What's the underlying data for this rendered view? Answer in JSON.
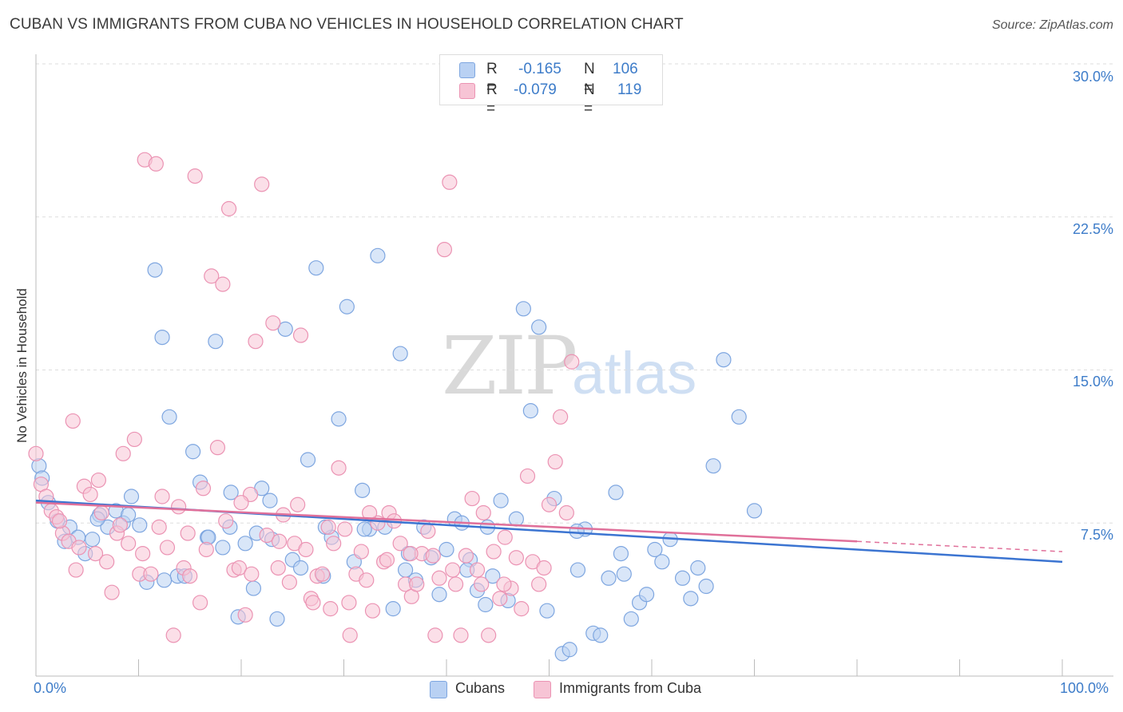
{
  "title": "CUBAN VS IMMIGRANTS FROM CUBA NO VEHICLES IN HOUSEHOLD CORRELATION CHART",
  "source": "Source: ZipAtlas.com",
  "watermark": {
    "zip": "ZIP",
    "atlas": "atlas"
  },
  "colors": {
    "blue": "#3b74d1",
    "blue_fill": "#b9d1f3",
    "blue_stroke": "#7ea6e0",
    "pink": "#e0709a",
    "pink_fill": "#f7c4d5",
    "pink_stroke": "#eb93b3",
    "tick_text": "#3d7cc9",
    "grid": "#dddddd"
  },
  "legend": {
    "rows": [
      {
        "r_label": "R =",
        "r_value": "-0.165",
        "n_label": "N =",
        "n_value": "106"
      },
      {
        "r_label": "R =",
        "r_value": "-0.079",
        "n_label": "N =",
        "n_value": "119"
      }
    ]
  },
  "bottom_legend": [
    "Cubans",
    "Immigrants from Cuba"
  ],
  "chart_data": {
    "type": "scatter",
    "ylabel": "No Vehicles in Household",
    "xlabel": "",
    "xlim": [
      0,
      100
    ],
    "ylim": [
      0,
      30
    ],
    "x_tick_labels": [
      "0.0%",
      "100.0%"
    ],
    "y_tick_labels": [
      "7.5%",
      "15.0%",
      "22.5%",
      "30.0%"
    ],
    "y_tick_values": [
      7.5,
      15.0,
      22.5,
      30.0
    ],
    "grid": "horizontal dashed",
    "legend_position": "top-center",
    "series": [
      {
        "name": "Cubans",
        "r": -0.165,
        "n": 106,
        "trend": {
          "x": [
            0,
            100
          ],
          "y": [
            8.6,
            5.6
          ]
        },
        "points": [
          [
            0.3,
            10.3
          ],
          [
            0.6,
            9.7
          ],
          [
            1.2,
            8.5
          ],
          [
            2.1,
            7.6
          ],
          [
            2.8,
            6.6
          ],
          [
            3.3,
            7.3
          ],
          [
            4.1,
            6.8
          ],
          [
            4.8,
            6.0
          ],
          [
            5.5,
            6.7
          ],
          [
            6.2,
            7.9
          ],
          [
            7.0,
            7.3
          ],
          [
            7.8,
            8.1
          ],
          [
            8.5,
            7.5
          ],
          [
            9.3,
            8.8
          ],
          [
            10.1,
            7.4
          ],
          [
            10.8,
            4.6
          ],
          [
            11.6,
            19.9
          ],
          [
            12.3,
            16.6
          ],
          [
            13.0,
            12.7
          ],
          [
            13.8,
            4.9
          ],
          [
            14.5,
            4.9
          ],
          [
            15.3,
            11.0
          ],
          [
            16.0,
            9.5
          ],
          [
            16.7,
            6.8
          ],
          [
            17.5,
            16.4
          ],
          [
            18.2,
            6.3
          ],
          [
            18.9,
            7.3
          ],
          [
            19.7,
            2.9
          ],
          [
            20.4,
            6.5
          ],
          [
            21.2,
            4.3
          ],
          [
            22.0,
            9.2
          ],
          [
            22.8,
            8.6
          ],
          [
            23.5,
            2.8
          ],
          [
            24.3,
            17.0
          ],
          [
            25.0,
            5.7
          ],
          [
            25.8,
            5.3
          ],
          [
            26.5,
            10.6
          ],
          [
            27.3,
            20.0
          ],
          [
            28.0,
            4.9
          ],
          [
            28.8,
            6.8
          ],
          [
            29.5,
            12.6
          ],
          [
            30.3,
            18.1
          ],
          [
            31.0,
            5.6
          ],
          [
            31.8,
            9.1
          ],
          [
            32.5,
            7.2
          ],
          [
            33.3,
            20.6
          ],
          [
            34.0,
            7.3
          ],
          [
            34.8,
            3.3
          ],
          [
            35.5,
            15.8
          ],
          [
            36.3,
            6.0
          ],
          [
            37.0,
            4.7
          ],
          [
            37.8,
            7.3
          ],
          [
            38.5,
            5.8
          ],
          [
            39.3,
            4.0
          ],
          [
            40.0,
            6.2
          ],
          [
            40.8,
            7.7
          ],
          [
            41.5,
            7.5
          ],
          [
            42.3,
            5.7
          ],
          [
            43.0,
            4.2
          ],
          [
            43.8,
            3.5
          ],
          [
            44.5,
            4.9
          ],
          [
            45.3,
            8.6
          ],
          [
            46.0,
            3.7
          ],
          [
            46.8,
            7.7
          ],
          [
            47.5,
            18.0
          ],
          [
            48.2,
            13.0
          ],
          [
            49.0,
            17.1
          ],
          [
            49.8,
            3.2
          ],
          [
            50.5,
            8.7
          ],
          [
            51.3,
            1.1
          ],
          [
            52.0,
            1.3
          ],
          [
            52.8,
            5.2
          ],
          [
            53.5,
            7.2
          ],
          [
            54.3,
            2.1
          ],
          [
            55.0,
            2.0
          ],
          [
            55.8,
            4.8
          ],
          [
            56.5,
            9.0
          ],
          [
            57.3,
            5.0
          ],
          [
            58.0,
            2.8
          ],
          [
            58.8,
            3.6
          ],
          [
            59.5,
            4.0
          ],
          [
            60.3,
            6.2
          ],
          [
            61.0,
            5.6
          ],
          [
            61.8,
            6.7
          ],
          [
            63.0,
            4.8
          ],
          [
            63.8,
            3.8
          ],
          [
            64.5,
            5.3
          ],
          [
            65.3,
            4.4
          ],
          [
            66.0,
            10.3
          ],
          [
            67.0,
            15.5
          ],
          [
            68.5,
            12.7
          ],
          [
            70.0,
            8.1
          ],
          [
            12.5,
            4.7
          ],
          [
            16.8,
            6.8
          ],
          [
            19.0,
            9.0
          ],
          [
            21.5,
            7.0
          ],
          [
            23.0,
            6.7
          ],
          [
            28.2,
            7.3
          ],
          [
            32.0,
            7.2
          ],
          [
            36.0,
            5.2
          ],
          [
            42.0,
            5.2
          ],
          [
            44.0,
            7.3
          ],
          [
            52.7,
            7.1
          ],
          [
            57.0,
            6.0
          ],
          [
            9.0,
            7.9
          ],
          [
            6.0,
            7.7
          ]
        ]
      },
      {
        "name": "Immigrants from Cuba",
        "r": -0.079,
        "n": 119,
        "trend": {
          "x": [
            0,
            80
          ],
          "y": [
            8.5,
            6.6
          ]
        },
        "trend_dashed": {
          "x": [
            80,
            100
          ],
          "y": [
            6.6,
            6.1
          ]
        },
        "points": [
          [
            0.0,
            10.9
          ],
          [
            0.5,
            9.4
          ],
          [
            1.0,
            8.8
          ],
          [
            1.5,
            8.1
          ],
          [
            2.0,
            7.8
          ],
          [
            2.6,
            7.0
          ],
          [
            3.2,
            6.6
          ],
          [
            3.6,
            12.5
          ],
          [
            4.2,
            6.3
          ],
          [
            4.7,
            9.3
          ],
          [
            5.3,
            8.9
          ],
          [
            5.8,
            6.0
          ],
          [
            6.4,
            8.0
          ],
          [
            6.9,
            5.6
          ],
          [
            7.4,
            4.1
          ],
          [
            7.9,
            7.0
          ],
          [
            8.5,
            10.9
          ],
          [
            9.0,
            6.5
          ],
          [
            9.6,
            11.6
          ],
          [
            10.1,
            5.0
          ],
          [
            10.6,
            25.3
          ],
          [
            11.2,
            5.0
          ],
          [
            11.7,
            25.1
          ],
          [
            12.3,
            8.8
          ],
          [
            12.8,
            6.3
          ],
          [
            13.4,
            2.0
          ],
          [
            13.9,
            8.3
          ],
          [
            14.4,
            5.3
          ],
          [
            15.0,
            4.9
          ],
          [
            15.5,
            24.5
          ],
          [
            16.0,
            3.6
          ],
          [
            16.6,
            6.2
          ],
          [
            17.1,
            19.6
          ],
          [
            17.7,
            11.2
          ],
          [
            18.2,
            19.2
          ],
          [
            18.8,
            22.9
          ],
          [
            19.3,
            5.2
          ],
          [
            19.8,
            5.3
          ],
          [
            20.4,
            3.0
          ],
          [
            20.9,
            8.9
          ],
          [
            21.4,
            16.4
          ],
          [
            22.0,
            24.1
          ],
          [
            22.5,
            6.9
          ],
          [
            23.1,
            17.3
          ],
          [
            23.6,
            5.3
          ],
          [
            24.1,
            7.9
          ],
          [
            24.7,
            4.6
          ],
          [
            25.2,
            6.5
          ],
          [
            25.8,
            16.7
          ],
          [
            26.3,
            6.2
          ],
          [
            26.8,
            3.8
          ],
          [
            27.4,
            4.9
          ],
          [
            27.9,
            5.0
          ],
          [
            28.5,
            7.3
          ],
          [
            29.0,
            6.5
          ],
          [
            29.5,
            10.2
          ],
          [
            30.1,
            7.2
          ],
          [
            30.6,
            2.0
          ],
          [
            31.2,
            5.0
          ],
          [
            31.7,
            6.1
          ],
          [
            32.2,
            4.7
          ],
          [
            32.8,
            3.2
          ],
          [
            33.3,
            7.5
          ],
          [
            33.9,
            5.6
          ],
          [
            34.4,
            8.0
          ],
          [
            34.9,
            7.6
          ],
          [
            35.5,
            6.5
          ],
          [
            36.0,
            4.5
          ],
          [
            36.6,
            3.9
          ],
          [
            37.1,
            4.5
          ],
          [
            37.6,
            6.0
          ],
          [
            38.2,
            7.1
          ],
          [
            38.7,
            5.9
          ],
          [
            39.3,
            4.8
          ],
          [
            39.8,
            20.9
          ],
          [
            40.3,
            24.2
          ],
          [
            40.9,
            4.5
          ],
          [
            41.4,
            2.0
          ],
          [
            41.9,
            5.9
          ],
          [
            42.5,
            8.7
          ],
          [
            43.0,
            5.2
          ],
          [
            43.6,
            8.0
          ],
          [
            44.1,
            2.0
          ],
          [
            44.6,
            6.1
          ],
          [
            45.2,
            3.8
          ],
          [
            45.7,
            6.8
          ],
          [
            46.3,
            4.3
          ],
          [
            46.8,
            5.8
          ],
          [
            47.3,
            3.3
          ],
          [
            47.9,
            9.8
          ],
          [
            48.4,
            5.6
          ],
          [
            49.0,
            4.5
          ],
          [
            49.5,
            5.3
          ],
          [
            50.0,
            8.4
          ],
          [
            50.6,
            10.5
          ],
          [
            51.1,
            12.7
          ],
          [
            51.7,
            8.0
          ],
          [
            52.2,
            15.4
          ],
          [
            2.3,
            7.6
          ],
          [
            3.9,
            5.2
          ],
          [
            6.1,
            9.6
          ],
          [
            8.2,
            7.4
          ],
          [
            10.4,
            6.0
          ],
          [
            12.0,
            7.3
          ],
          [
            14.8,
            7.0
          ],
          [
            16.3,
            9.2
          ],
          [
            18.5,
            7.6
          ],
          [
            20.0,
            8.5
          ],
          [
            21.0,
            5.0
          ],
          [
            23.7,
            6.6
          ],
          [
            25.5,
            8.4
          ],
          [
            27.0,
            3.6
          ],
          [
            28.7,
            3.3
          ],
          [
            30.5,
            3.6
          ],
          [
            32.5,
            8.0
          ],
          [
            34.2,
            5.7
          ],
          [
            36.5,
            6.0
          ],
          [
            38.9,
            2.0
          ],
          [
            40.6,
            5.2
          ],
          [
            43.4,
            4.5
          ],
          [
            45.6,
            4.5
          ]
        ]
      }
    ]
  }
}
